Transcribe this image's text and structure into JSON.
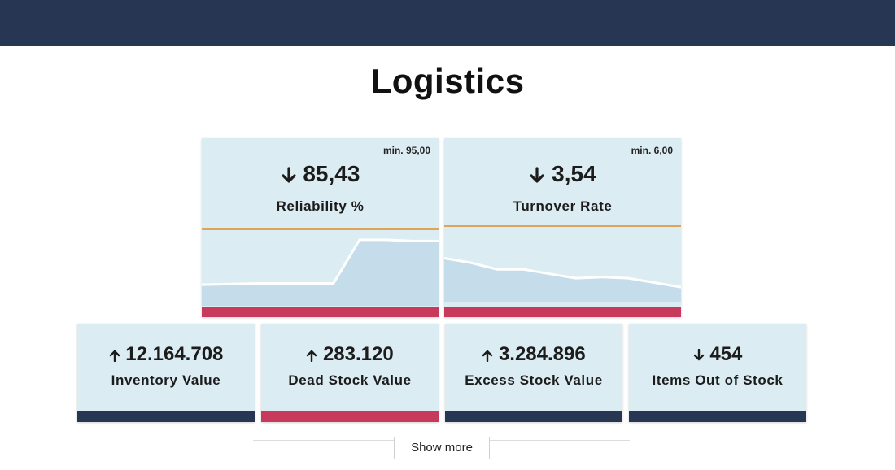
{
  "page": {
    "title": "Logistics"
  },
  "kpis_main": [
    {
      "label": "Reliability %",
      "value": "85,43",
      "trend": "down",
      "min_label": "min. 95,00",
      "status_color": "#c73a5c",
      "sparkline": [
        88.4,
        88.5,
        88.6,
        88.6,
        88.6,
        88.6,
        95.8,
        95.8,
        95.6,
        95.6
      ]
    },
    {
      "label": "Turnover Rate",
      "value": "3,54",
      "trend": "down",
      "min_label": "min. 6,00",
      "status_color": "#c73a5c",
      "sparkline": [
        4.9,
        4.7,
        4.4,
        4.4,
        4.2,
        4.0,
        4.05,
        4.0,
        3.8,
        3.6
      ]
    }
  ],
  "kpis_secondary": [
    {
      "label": "Inventory Value",
      "value": "12.164.708",
      "trend": "up",
      "status_color": "#263653"
    },
    {
      "label": "Dead Stock Value",
      "value": "283.120",
      "trend": "up",
      "status_color": "#c73a5c"
    },
    {
      "label": "Excess Stock Value",
      "value": "3.284.896",
      "trend": "up",
      "status_color": "#263653"
    },
    {
      "label": "Items Out of Stock",
      "value": "454",
      "trend": "down",
      "status_color": "#263653"
    }
  ],
  "actions": {
    "show_more": "Show more"
  },
  "colors": {
    "header": "#263653",
    "card_bg": "#dcecf3",
    "threshold_line": "#e0a35a",
    "spark_line": "#ffffff",
    "spark_fill": "#a9cde3",
    "alert": "#c73a5c",
    "normal": "#263653"
  }
}
